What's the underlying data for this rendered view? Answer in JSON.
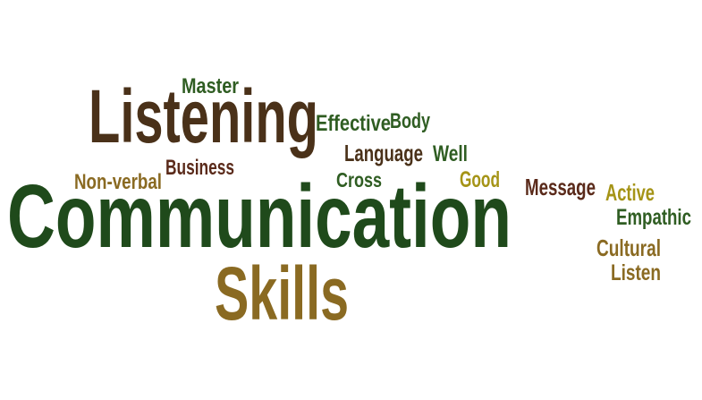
{
  "colors": {
    "background": "#ffffff",
    "dark_green": "#1f4a1b",
    "brown": "#4a3119",
    "olive": "#8a6a22",
    "light_olive": "#a59417",
    "maroon": "#5a2a1a"
  },
  "words": [
    {
      "key": "communication",
      "text": "Communication",
      "color": "#1f4a1b"
    },
    {
      "key": "listening",
      "text": "Listening",
      "color": "#4a3119"
    },
    {
      "key": "skills",
      "text": "Skills",
      "color": "#8a6a22"
    },
    {
      "key": "master",
      "text": "Master",
      "color": "#2f5d22"
    },
    {
      "key": "effective",
      "text": "Effective",
      "color": "#2f5d22"
    },
    {
      "key": "body",
      "text": "Body",
      "color": "#2f5d22"
    },
    {
      "key": "language",
      "text": "Language",
      "color": "#4a3119"
    },
    {
      "key": "well",
      "text": "Well",
      "color": "#2f5d22"
    },
    {
      "key": "business",
      "text": "Business",
      "color": "#5a2a1a"
    },
    {
      "key": "non_verbal",
      "text": "Non-verbal",
      "color": "#8a6a22"
    },
    {
      "key": "cross",
      "text": "Cross",
      "color": "#2f5d22"
    },
    {
      "key": "good",
      "text": "Good",
      "color": "#a59417"
    },
    {
      "key": "message",
      "text": "Message",
      "color": "#5a2a1a"
    },
    {
      "key": "active",
      "text": "Active",
      "color": "#a59417"
    },
    {
      "key": "empathic",
      "text": "Empathic",
      "color": "#2f5d22"
    },
    {
      "key": "cultural",
      "text": "Cultural",
      "color": "#8a6a22"
    },
    {
      "key": "listen",
      "text": "Listen",
      "color": "#8a6a22"
    }
  ]
}
